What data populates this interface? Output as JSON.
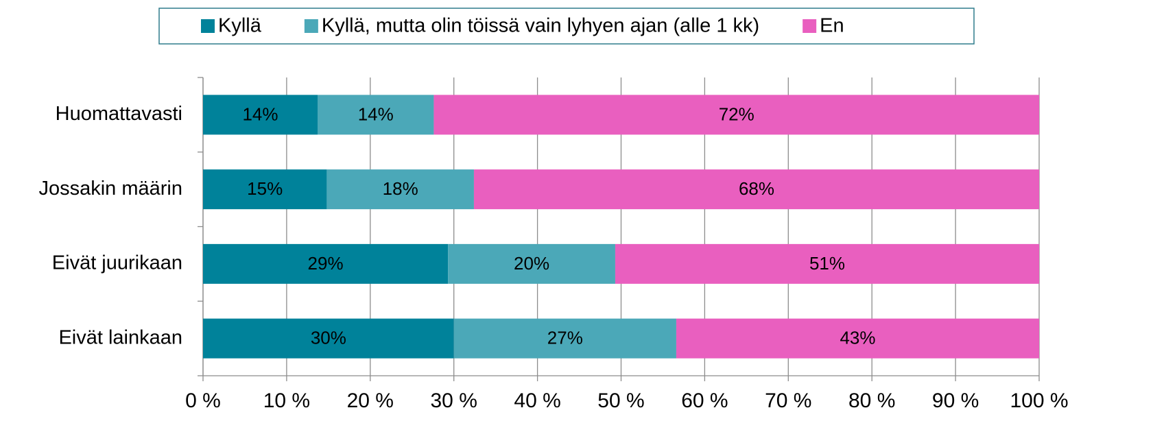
{
  "chart_data": {
    "type": "bar",
    "orientation": "horizontal",
    "stacked": true,
    "categories": [
      "Huomattavasti",
      "Jossakin määrin",
      "Eivät juurikaan",
      "Eivät lainkaan"
    ],
    "series": [
      {
        "name": "Kyllä",
        "color": "#00829a",
        "values": [
          13.7,
          14.8,
          29.3,
          30.0
        ],
        "value_labels": [
          "14%",
          "15%",
          "29%",
          "30%"
        ]
      },
      {
        "name": "Kyllä, mutta olin töissä vain lyhyen ajan (alle 1 kk)",
        "color": "#4ba8b8",
        "values": [
          13.9,
          17.6,
          20.0,
          26.6
        ],
        "value_labels": [
          "14%",
          "18%",
          "20%",
          "27%"
        ]
      },
      {
        "name": "En",
        "color": "#e95fbf",
        "values": [
          72.4,
          67.6,
          50.7,
          43.4
        ],
        "value_labels": [
          "72%",
          "68%",
          "51%",
          "43%"
        ]
      }
    ],
    "xlim": [
      0,
      100
    ],
    "xticks": [
      {
        "value": 0,
        "label": "0 %"
      },
      {
        "value": 10,
        "label": "10 %"
      },
      {
        "value": 20,
        "label": "20 %"
      },
      {
        "value": 30,
        "label": "30 %"
      },
      {
        "value": 40,
        "label": "40 %"
      },
      {
        "value": 50,
        "label": "50 %"
      },
      {
        "value": 60,
        "label": "60 %"
      },
      {
        "value": 70,
        "label": "70 %"
      },
      {
        "value": 80,
        "label": "80 %"
      },
      {
        "value": 90,
        "label": "90 %"
      },
      {
        "value": 100,
        "label": "100 %"
      }
    ],
    "grid": true,
    "legend": "top"
  }
}
